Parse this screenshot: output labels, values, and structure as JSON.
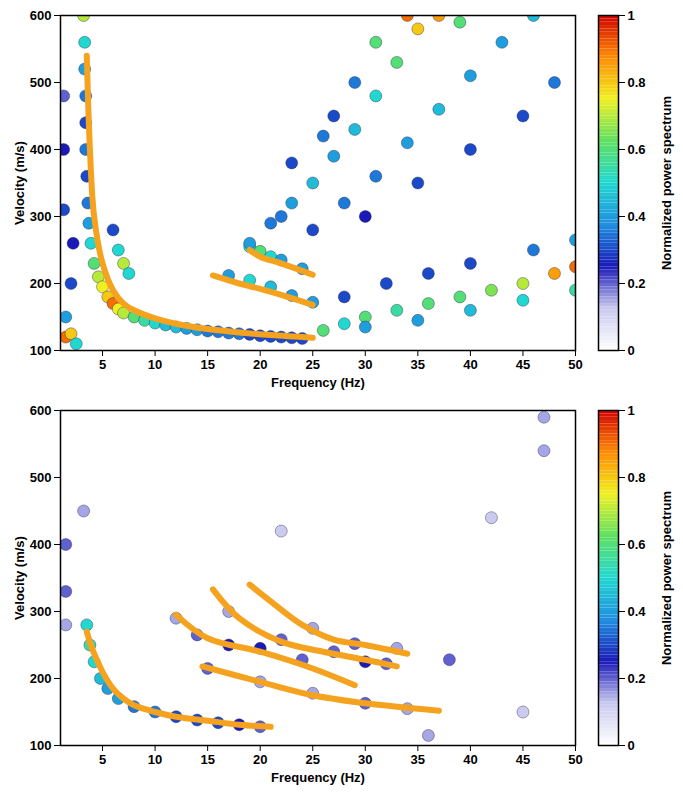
{
  "chart_data": [
    {
      "type": "heatmap",
      "x_label": "Frequency (Hz)",
      "y_label": "Velocity (m/s)",
      "xlim": [
        1,
        50
      ],
      "xticks": [
        5,
        10,
        15,
        20,
        25,
        30,
        35,
        40,
        45,
        50
      ],
      "ylim": [
        100,
        600
      ],
      "yticks": [
        100,
        200,
        300,
        400,
        500,
        600
      ],
      "colorbar": {
        "label": "Normalized power spectrum",
        "lim": [
          0,
          1
        ],
        "ticks": [
          0,
          0.2,
          0.4,
          0.6,
          0.8,
          1
        ]
      },
      "cells": [
        [
          1.5,
          120,
          0.9
        ],
        [
          2,
          125,
          0.8
        ],
        [
          1.5,
          150,
          0.4
        ],
        [
          2.5,
          110,
          0.5
        ],
        [
          3.2,
          600,
          0.7
        ],
        [
          3.3,
          560,
          0.5
        ],
        [
          3.3,
          520,
          0.4
        ],
        [
          3.4,
          480,
          0.35
        ],
        [
          3.4,
          440,
          0.3
        ],
        [
          3.4,
          400,
          0.35
        ],
        [
          3.5,
          360,
          0.3
        ],
        [
          3.6,
          320,
          0.35
        ],
        [
          3.7,
          290,
          0.4
        ],
        [
          3.9,
          260,
          0.5
        ],
        [
          4.2,
          230,
          0.6
        ],
        [
          4.6,
          210,
          0.7
        ],
        [
          5,
          195,
          0.75
        ],
        [
          5.5,
          180,
          0.8
        ],
        [
          6,
          170,
          0.9
        ],
        [
          6.5,
          162,
          0.75
        ],
        [
          7,
          156,
          0.7
        ],
        [
          8,
          150,
          0.6
        ],
        [
          9,
          145,
          0.55
        ],
        [
          10,
          141,
          0.5
        ],
        [
          11,
          138,
          0.45
        ],
        [
          12,
          135,
          0.45
        ],
        [
          13,
          133,
          0.4
        ],
        [
          14,
          131,
          0.4
        ],
        [
          15,
          129,
          0.35
        ],
        [
          16,
          128,
          0.35
        ],
        [
          17,
          126,
          0.35
        ],
        [
          18,
          125,
          0.35
        ],
        [
          19,
          124,
          0.3
        ],
        [
          20,
          122,
          0.3
        ],
        [
          21,
          121,
          0.3
        ],
        [
          22,
          120,
          0.3
        ],
        [
          23,
          119,
          0.3
        ],
        [
          24,
          118,
          0.3
        ],
        [
          6.5,
          250,
          0.5
        ],
        [
          7,
          230,
          0.7
        ],
        [
          7.5,
          215,
          0.5
        ],
        [
          6,
          280,
          0.3
        ],
        [
          2,
          200,
          0.3
        ],
        [
          2.2,
          260,
          0.25
        ],
        [
          1.3,
          310,
          0.3
        ],
        [
          1.3,
          400,
          0.25
        ],
        [
          1.3,
          480,
          0.2
        ],
        [
          19,
          255,
          0.5
        ],
        [
          20,
          248,
          0.6
        ],
        [
          21,
          240,
          0.5
        ],
        [
          22,
          235,
          0.4
        ],
        [
          24,
          222,
          0.4
        ],
        [
          17,
          212,
          0.4
        ],
        [
          19,
          205,
          0.5
        ],
        [
          21,
          195,
          0.45
        ],
        [
          23,
          182,
          0.4
        ],
        [
          25,
          172,
          0.4
        ],
        [
          19,
          260,
          0.4
        ],
        [
          21,
          290,
          0.35
        ],
        [
          23,
          320,
          0.4
        ],
        [
          25,
          350,
          0.45
        ],
        [
          27,
          390,
          0.4
        ],
        [
          29,
          430,
          0.45
        ],
        [
          31,
          480,
          0.5
        ],
        [
          33,
          530,
          0.6
        ],
        [
          35,
          580,
          0.8
        ],
        [
          34,
          600,
          0.9
        ],
        [
          37,
          600,
          0.85
        ],
        [
          39,
          590,
          0.6
        ],
        [
          25,
          280,
          0.3
        ],
        [
          28,
          320,
          0.35
        ],
        [
          31,
          360,
          0.35
        ],
        [
          34,
          410,
          0.4
        ],
        [
          37,
          460,
          0.45
        ],
        [
          40,
          510,
          0.4
        ],
        [
          43,
          560,
          0.4
        ],
        [
          46,
          600,
          0.45
        ],
        [
          30,
          300,
          0.25
        ],
        [
          35,
          350,
          0.3
        ],
        [
          40,
          400,
          0.3
        ],
        [
          45,
          450,
          0.3
        ],
        [
          48,
          500,
          0.35
        ],
        [
          27,
          450,
          0.3
        ],
        [
          29,
          500,
          0.35
        ],
        [
          31,
          560,
          0.6
        ],
        [
          23,
          380,
          0.3
        ],
        [
          22,
          300,
          0.35
        ],
        [
          26,
          420,
          0.35
        ],
        [
          26,
          130,
          0.6
        ],
        [
          28,
          140,
          0.5
        ],
        [
          30,
          150,
          0.6
        ],
        [
          33,
          160,
          0.55
        ],
        [
          36,
          170,
          0.6
        ],
        [
          39,
          180,
          0.6
        ],
        [
          42,
          190,
          0.65
        ],
        [
          45,
          200,
          0.7
        ],
        [
          48,
          215,
          0.85
        ],
        [
          50,
          225,
          0.9
        ],
        [
          30,
          135,
          0.4
        ],
        [
          35,
          145,
          0.4
        ],
        [
          40,
          160,
          0.45
        ],
        [
          45,
          175,
          0.5
        ],
        [
          50,
          190,
          0.55
        ],
        [
          28,
          180,
          0.3
        ],
        [
          32,
          200,
          0.3
        ],
        [
          36,
          215,
          0.3
        ],
        [
          40,
          230,
          0.3
        ],
        [
          46,
          250,
          0.35
        ],
        [
          50,
          265,
          0.4
        ]
      ],
      "series": [
        {
          "color": "#f5a31f",
          "values": [
            [
              3.5,
              540
            ],
            [
              3.8,
              400
            ],
            [
              4.2,
              300
            ],
            [
              5,
              230
            ],
            [
              6,
              190
            ],
            [
              7,
              170
            ],
            [
              8,
              160
            ],
            [
              10,
              148
            ],
            [
              12,
              140
            ],
            [
              15,
              132
            ],
            [
              18,
              127
            ],
            [
              21,
              123
            ],
            [
              25,
              119
            ]
          ]
        },
        {
          "color": "#f5a31f",
          "values": [
            [
              15.5,
              212
            ],
            [
              18,
              200
            ],
            [
              20,
              192
            ],
            [
              22,
              183
            ],
            [
              25,
              168
            ]
          ]
        },
        {
          "color": "#f5a31f",
          "values": [
            [
              19,
              250
            ],
            [
              20,
              240
            ],
            [
              22,
              230
            ],
            [
              25,
              213
            ]
          ]
        }
      ]
    },
    {
      "type": "heatmap",
      "x_label": "Frequency (Hz)",
      "y_label": "Velocity (m/s)",
      "xlim": [
        1,
        50
      ],
      "xticks": [
        5,
        10,
        15,
        20,
        25,
        30,
        35,
        40,
        45,
        50
      ],
      "ylim": [
        100,
        600
      ],
      "yticks": [
        100,
        200,
        300,
        400,
        500,
        600
      ],
      "colorbar": {
        "label": "Normalized power spectrum",
        "lim": [
          0,
          1
        ],
        "ticks": [
          0,
          0.2,
          0.4,
          0.6,
          0.8,
          1
        ]
      },
      "cells": [
        [
          1.5,
          400,
          0.2
        ],
        [
          1.5,
          330,
          0.2
        ],
        [
          1.5,
          280,
          0.15
        ],
        [
          3.2,
          450,
          0.15
        ],
        [
          3.5,
          280,
          0.5
        ],
        [
          3.8,
          250,
          0.55
        ],
        [
          4.2,
          225,
          0.5
        ],
        [
          4.8,
          200,
          0.45
        ],
        [
          5.5,
          185,
          0.4
        ],
        [
          6.5,
          170,
          0.4
        ],
        [
          8,
          158,
          0.35
        ],
        [
          10,
          150,
          0.35
        ],
        [
          12,
          143,
          0.3
        ],
        [
          14,
          138,
          0.3
        ],
        [
          16,
          134,
          0.3
        ],
        [
          18,
          131,
          0.25
        ],
        [
          20,
          128,
          0.2
        ],
        [
          12,
          290,
          0.15
        ],
        [
          14,
          265,
          0.2
        ],
        [
          17,
          250,
          0.25
        ],
        [
          20,
          245,
          0.25
        ],
        [
          24,
          228,
          0.2
        ],
        [
          15,
          215,
          0.2
        ],
        [
          20,
          195,
          0.15
        ],
        [
          25,
          178,
          0.15
        ],
        [
          30,
          163,
          0.2
        ],
        [
          34,
          155,
          0.15
        ],
        [
          17,
          300,
          0.15
        ],
        [
          22,
          258,
          0.2
        ],
        [
          27,
          240,
          0.2
        ],
        [
          30,
          225,
          0.25
        ],
        [
          32,
          222,
          0.2
        ],
        [
          25,
          275,
          0.15
        ],
        [
          29,
          252,
          0.2
        ],
        [
          33,
          245,
          0.15
        ],
        [
          38,
          228,
          0.2
        ],
        [
          36,
          115,
          0.15
        ],
        [
          45,
          150,
          0.12
        ],
        [
          47,
          590,
          0.15
        ],
        [
          47,
          540,
          0.15
        ],
        [
          22,
          420,
          0.12
        ],
        [
          42,
          440,
          0.12
        ]
      ],
      "series": [
        {
          "color": "#f5a31f",
          "values": [
            [
              3.5,
              270
            ],
            [
              4,
              245
            ],
            [
              5,
              210
            ],
            [
              6,
              185
            ],
            [
              7,
              170
            ],
            [
              8,
              160
            ],
            [
              10,
              150
            ],
            [
              12,
              143
            ],
            [
              15,
              137
            ],
            [
              18,
              131
            ],
            [
              21,
              128
            ]
          ]
        },
        {
          "color": "#f5a31f",
          "values": [
            [
              14.5,
              218
            ],
            [
              20,
              195
            ],
            [
              25,
              175
            ],
            [
              30,
              163
            ],
            [
              37,
              152
            ]
          ]
        },
        {
          "color": "#f5a31f",
          "values": [
            [
              12,
              295
            ],
            [
              15,
              260
            ],
            [
              20,
              240
            ],
            [
              25,
              215
            ],
            [
              29,
              190
            ]
          ]
        },
        {
          "color": "#f5a31f",
          "values": [
            [
              15.5,
              333
            ],
            [
              18,
              290
            ],
            [
              22,
              255
            ],
            [
              26,
              240
            ],
            [
              30,
              228
            ],
            [
              33,
              218
            ]
          ]
        },
        {
          "color": "#f5a31f",
          "values": [
            [
              19,
              340
            ],
            [
              21,
              315
            ],
            [
              24,
              280
            ],
            [
              27,
              258
            ],
            [
              30,
              250
            ],
            [
              34,
              237
            ]
          ]
        }
      ]
    }
  ]
}
